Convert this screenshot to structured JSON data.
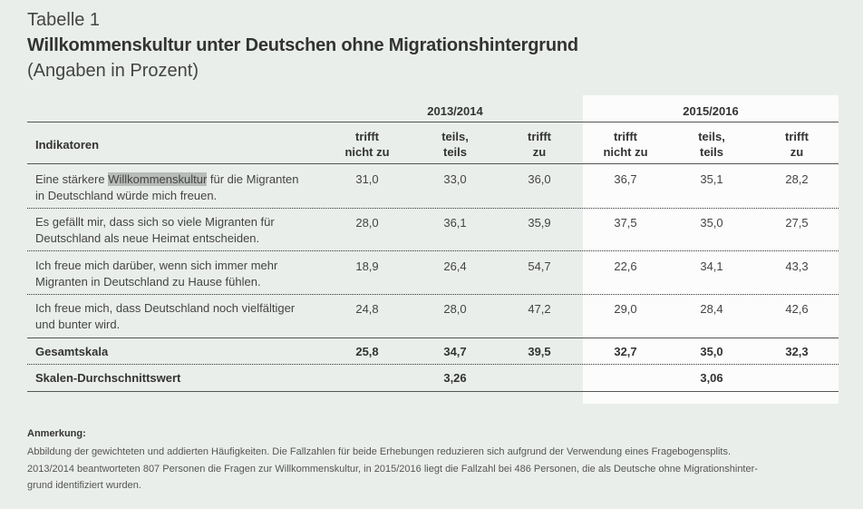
{
  "label": "Tabelle 1",
  "title": "Willkommenskultur unter Deutschen ohne Migrationshintergrund",
  "subtitle": "(Angaben in Prozent)",
  "periods": [
    "2013/2014",
    "2015/2016"
  ],
  "header": {
    "indikatoren": "Indikatoren",
    "cols": [
      [
        "trifft",
        "nicht zu"
      ],
      [
        "teils,",
        "teils"
      ],
      [
        "trifft",
        "zu"
      ],
      [
        "trifft",
        "nicht zu"
      ],
      [
        "teils,",
        "teils"
      ],
      [
        "trifft",
        "zu"
      ]
    ]
  },
  "rows": [
    {
      "pre": "Eine stärkere ",
      "highlight": "Willkommenskultur",
      "post": " für die Migranten",
      "line2": "in Deutschland würde mich freuen.",
      "values": [
        "31,0",
        "33,0",
        "36,0",
        "36,7",
        "35,1",
        "28,2"
      ]
    },
    {
      "line1": "Es gefällt mir, dass sich so viele Migranten für",
      "line2": "Deutschland als neue Heimat entscheiden.",
      "values": [
        "28,0",
        "36,1",
        "35,9",
        "37,5",
        "35,0",
        "27,5"
      ]
    },
    {
      "line1": "Ich freue mich darüber, wenn sich immer mehr",
      "line2": "Migranten in Deutschland zu Hause fühlen.",
      "values": [
        "18,9",
        "26,4",
        "54,7",
        "22,6",
        "34,1",
        "43,3"
      ]
    },
    {
      "line1": "Ich freue mich, dass Deutschland noch vielfältiger",
      "line2": "und bunter wird.",
      "values": [
        "24,8",
        "28,0",
        "47,2",
        "29,0",
        "28,4",
        "42,6"
      ]
    }
  ],
  "gesamt": {
    "label": "Gesamtskala",
    "values": [
      "25,8",
      "34,7",
      "39,5",
      "32,7",
      "35,0",
      "32,3"
    ]
  },
  "skala": {
    "label": "Skalen-Durchschnittswert",
    "values": [
      "3,26",
      "3,06"
    ]
  },
  "note": {
    "heading": "Anmerkung:",
    "line1": "Abbildung der gewichteten und addierten Häufigkeiten. Die Fallzahlen für beide Erhebungen reduzieren sich aufgrund der Verwendung eines Fragebogensplits.",
    "line2": "2013/2014 beantworteten 807 Personen die Fragen zur Willkommenskultur, in 2015/2016 liegt die Fallzahl bei 486 Personen, die als Deutsche ohne Migrationshinter-",
    "line3": "grund identifiziert wurden."
  }
}
